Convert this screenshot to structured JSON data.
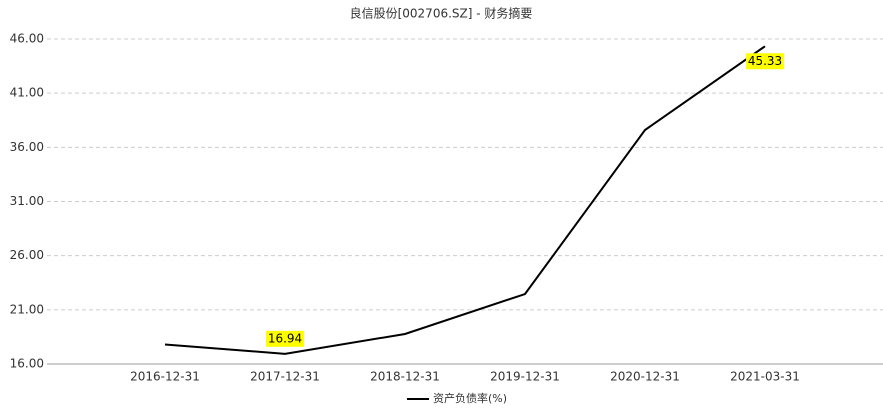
{
  "chart_data": {
    "type": "line",
    "title": "良信股份[002706.SZ] - 财务摘要",
    "categories": [
      "2016-12-31",
      "2017-12-31",
      "2018-12-31",
      "2019-12-31",
      "2020-12-31",
      "2021-03-31"
    ],
    "series": [
      {
        "name": "资产负债率(%)",
        "color": "#000000",
        "values": [
          17.8,
          16.94,
          18.77,
          22.46,
          37.6,
          45.33
        ],
        "value_labels": [
          null,
          "16.94",
          null,
          null,
          null,
          "45.33"
        ]
      }
    ],
    "ylim": [
      16,
      46
    ],
    "yticks": [
      {
        "value": 16,
        "label": "16.00"
      },
      {
        "value": 21,
        "label": "21.00"
      },
      {
        "value": 26,
        "label": "26.00"
      },
      {
        "value": 31,
        "label": "31.00"
      },
      {
        "value": 36,
        "label": "36.00"
      },
      {
        "value": 41,
        "label": "41.00"
      },
      {
        "value": 46,
        "label": "46.00"
      }
    ],
    "grid": true,
    "legend": "bottom"
  }
}
